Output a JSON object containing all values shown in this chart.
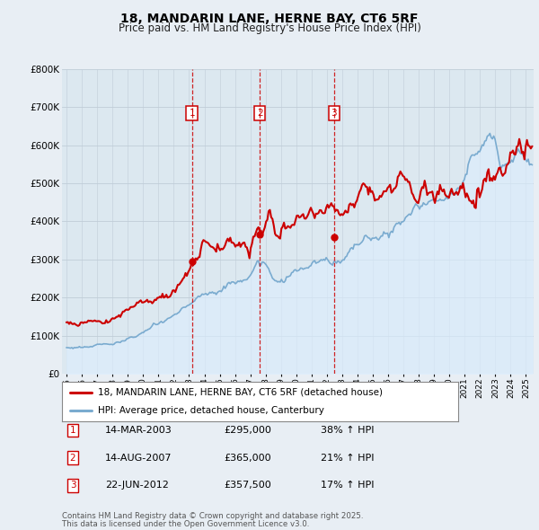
{
  "title": "18, MANDARIN LANE, HERNE BAY, CT6 5RF",
  "subtitle": "Price paid vs. HM Land Registry's House Price Index (HPI)",
  "hpi_label": "HPI: Average price, detached house, Canterbury",
  "price_label": "18, MANDARIN LANE, HERNE BAY, CT6 5RF (detached house)",
  "footer1": "Contains HM Land Registry data © Crown copyright and database right 2025.",
  "footer2": "This data is licensed under the Open Government Licence v3.0.",
  "transactions": [
    {
      "num": 1,
      "date": "14-MAR-2003",
      "price": 295000,
      "pct": "38%",
      "dir": "↑",
      "label": "HPI"
    },
    {
      "num": 2,
      "date": "14-AUG-2007",
      "price": 365000,
      "pct": "21%",
      "dir": "↑",
      "label": "HPI"
    },
    {
      "num": 3,
      "date": "22-JUN-2012",
      "price": 357500,
      "pct": "17%",
      "dir": "↑",
      "label": "HPI"
    }
  ],
  "vline_x": [
    2003.19,
    2007.62,
    2012.47
  ],
  "vline_color": "#cc0000",
  "price_color": "#cc0000",
  "hpi_color": "#7aabcf",
  "hpi_fill_color": "#ddeeff",
  "bg_color": "#e8eef4",
  "plot_bg": "#dce8f0",
  "grid_color": "#c0cdd8",
  "ylim": [
    0,
    800000
  ],
  "yticks": [
    0,
    100000,
    200000,
    300000,
    400000,
    500000,
    600000,
    700000,
    800000
  ],
  "xlim_min": 1994.7,
  "xlim_max": 2025.5
}
